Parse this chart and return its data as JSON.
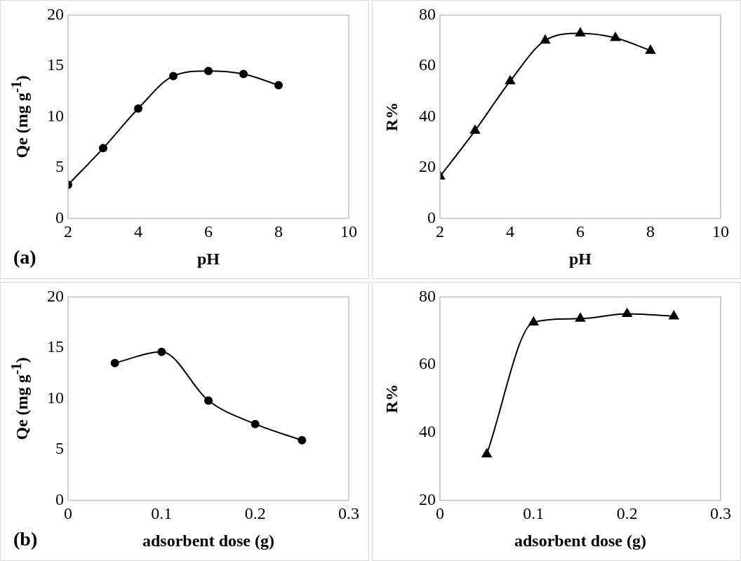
{
  "chart_data": [
    {
      "type": "line",
      "xlabel": "pH",
      "ylabel": "Qe (mg g$^{-1}$)",
      "x": [
        2,
        3,
        4,
        5,
        6,
        7,
        8
      ],
      "xlim": [
        2,
        10
      ],
      "xticks": [
        2,
        4,
        6,
        8,
        10
      ],
      "ylim": [
        0,
        20
      ],
      "yticks": [
        0,
        5,
        10,
        15,
        20
      ],
      "grid": false,
      "marker": "circle",
      "annotations": [
        "(a)"
      ],
      "series": [
        {
          "color": "#000000",
          "values": [
            3.3,
            6.9,
            10.8,
            14.0,
            14.5,
            14.2,
            13.1
          ]
        }
      ]
    },
    {
      "type": "line",
      "xlabel": "pH",
      "ylabel": "R%",
      "x": [
        2,
        3,
        4,
        5,
        6,
        7,
        8
      ],
      "xlim": [
        2,
        10
      ],
      "xticks": [
        2,
        4,
        6,
        8,
        10
      ],
      "ylim": [
        0,
        80
      ],
      "yticks": [
        0,
        20,
        40,
        60,
        80
      ],
      "grid": false,
      "marker": "triangle",
      "series": [
        {
          "color": "#000000",
          "values": [
            16.5,
            34.5,
            54,
            70,
            72.8,
            71,
            66
          ]
        }
      ]
    },
    {
      "type": "line",
      "xlabel": "adsorbent dose (g)",
      "ylabel": "Qe (mg g$^{-1}$)",
      "x": [
        0.05,
        0.1,
        0.15,
        0.2,
        0.25
      ],
      "xlim": [
        0,
        0.3
      ],
      "xticks": [
        0,
        0.1,
        0.2,
        0.3
      ],
      "ylim": [
        0,
        20
      ],
      "yticks": [
        0,
        5,
        10,
        15,
        20
      ],
      "grid": false,
      "marker": "circle",
      "annotations": [
        "(b)"
      ],
      "series": [
        {
          "color": "#000000",
          "values": [
            13.5,
            14.6,
            9.8,
            7.5,
            5.9
          ]
        }
      ]
    },
    {
      "type": "line",
      "xlabel": "adsorbent dose (g)",
      "ylabel": "R%",
      "x": [
        0.05,
        0.1,
        0.15,
        0.2,
        0.25
      ],
      "xlim": [
        0,
        0.3
      ],
      "xticks": [
        0,
        0.1,
        0.2,
        0.3
      ],
      "ylim": [
        20,
        80
      ],
      "yticks": [
        20,
        40,
        60,
        80
      ],
      "grid": false,
      "marker": "triangle",
      "series": [
        {
          "color": "#000000",
          "values": [
            33.6,
            72.5,
            73.6,
            75,
            74.3
          ]
        }
      ]
    }
  ]
}
